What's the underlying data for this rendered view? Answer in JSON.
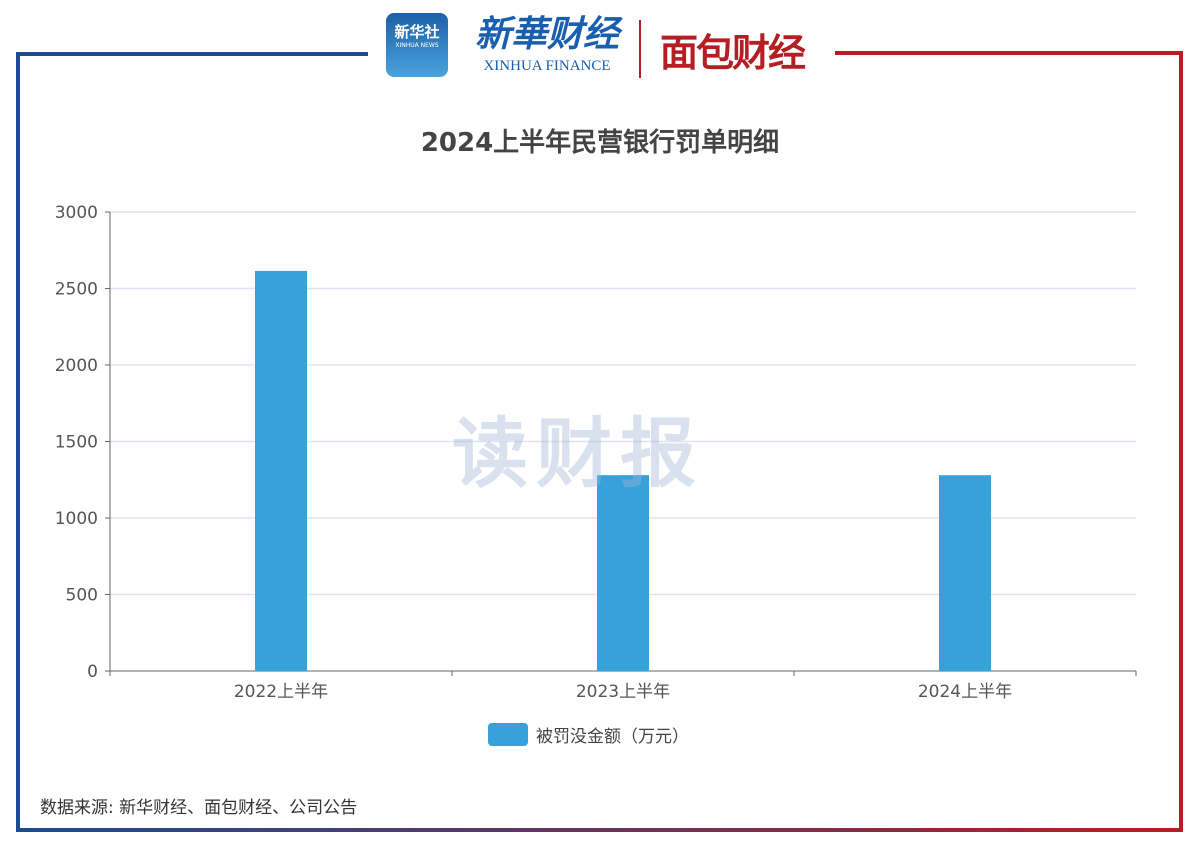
{
  "logos": {
    "xinhua_news": "新华社",
    "xinhua_news_en": "XINHUA NEWS",
    "xinhua_finance": "新華财经",
    "xinhua_finance_en": "XINHUA FINANCE",
    "mianbao": "面包财经",
    "watermark": "读财报"
  },
  "colors": {
    "bar": "#38a1da",
    "left_frame": "#1a4b93",
    "right_frame": "#b51e23"
  },
  "chart_data": {
    "type": "bar",
    "title": "2024上半年民营银行罚单明细",
    "categories": [
      "2022上半年",
      "2023上半年",
      "2024上半年"
    ],
    "series": [
      {
        "name": "被罚没金额（万元）",
        "values": [
          2615,
          1280,
          1280
        ]
      }
    ],
    "ylim": [
      0,
      3000
    ],
    "yticks": [
      0,
      500,
      1000,
      1500,
      2000,
      2500,
      3000
    ],
    "grid": true,
    "legend": "bottom"
  },
  "source": "数据来源: 新华财经、面包财经、公司公告"
}
